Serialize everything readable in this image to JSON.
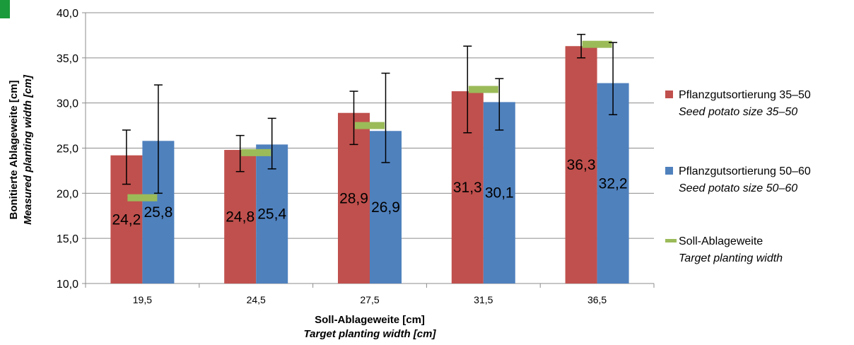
{
  "chart_data": {
    "type": "bar",
    "categories": [
      "19,5",
      "24,5",
      "27,5",
      "31,5",
      "36,5"
    ],
    "series": [
      {
        "name": "Pflanzgutsortierung 35–50",
        "name_en": "Seed potato size 35–50",
        "color": "#c0504d",
        "values": [
          24.2,
          24.8,
          28.9,
          31.3,
          36.3
        ],
        "labels": [
          "24,2",
          "24,8",
          "28,9",
          "31,3",
          "36,3"
        ],
        "error_low": [
          21.0,
          22.4,
          25.4,
          26.7,
          35.0
        ],
        "error_high": [
          27.0,
          26.4,
          31.3,
          36.3,
          37.6
        ]
      },
      {
        "name": "Pflanzgutsortierung 50–60",
        "name_en": "Seed potato size 50–60",
        "color": "#4f81bd",
        "values": [
          25.8,
          25.4,
          26.9,
          30.1,
          32.2
        ],
        "labels": [
          "25,8",
          "25,4",
          "26,9",
          "30,1",
          "32,2"
        ],
        "error_low": [
          20.0,
          22.7,
          23.4,
          27.0,
          28.7
        ],
        "error_high": [
          32.0,
          28.3,
          33.3,
          32.7,
          36.7
        ]
      }
    ],
    "target": {
      "name": "Soll-Ablageweite",
      "name_en": "Target planting width",
      "color": "#9bbb59",
      "values": [
        19.5,
        24.5,
        27.5,
        31.5,
        36.5
      ]
    },
    "ylabel": "Bonitierte Ablageweite [cm]",
    "ylabel_en": "Measured planting width [cm]",
    "xlabel": "Soll-Ablageweite [cm]",
    "xlabel_en": "Target planting width [cm]",
    "ylim": [
      10,
      40
    ],
    "yticks": [
      10,
      15,
      20,
      25,
      30,
      35,
      40
    ],
    "ytick_labels": [
      "10,0",
      "15,0",
      "20,0",
      "25,0",
      "30,0",
      "35,0",
      "40,0"
    ],
    "grid": true,
    "legend_position": "right"
  }
}
